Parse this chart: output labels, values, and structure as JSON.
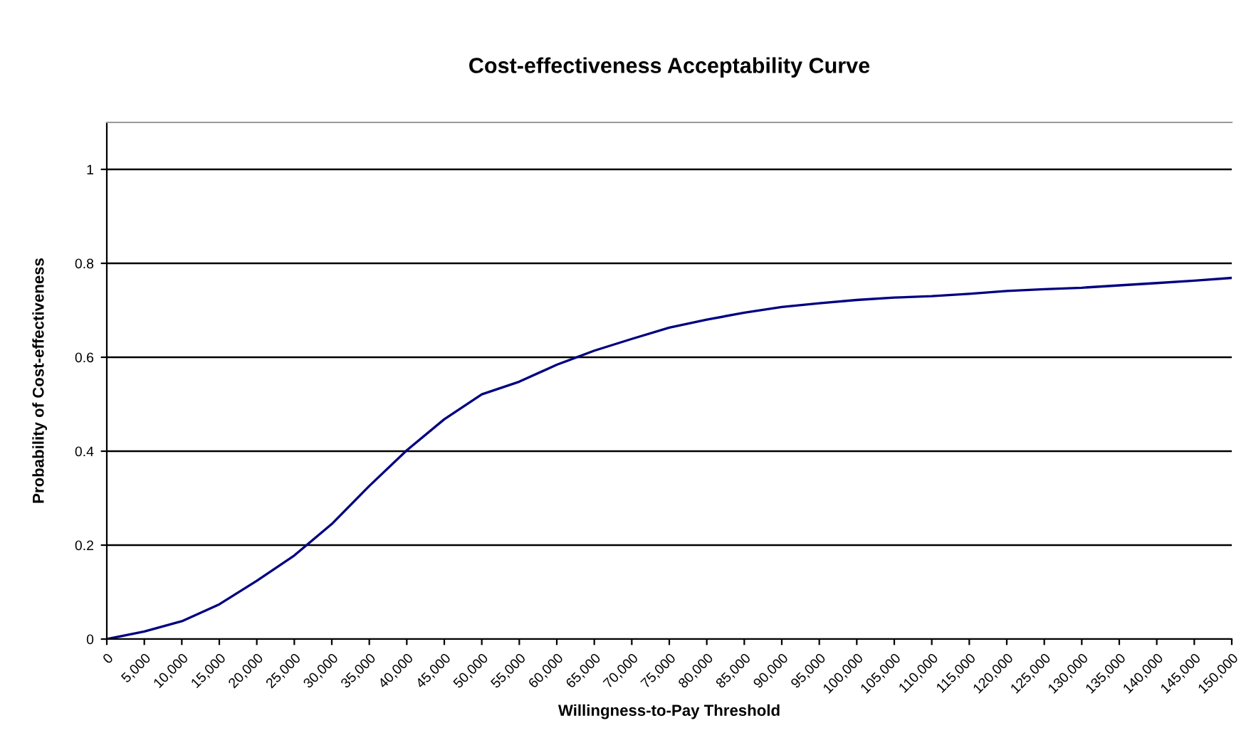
{
  "chart_data": {
    "type": "line",
    "title": "Cost-effectiveness Acceptability Curve",
    "xlabel": "Willingness-to-Pay Threshold",
    "ylabel": "Probability of Cost-effectiveness",
    "x": [
      0,
      5000,
      10000,
      15000,
      20000,
      25000,
      30000,
      35000,
      40000,
      45000,
      50000,
      55000,
      60000,
      65000,
      70000,
      75000,
      80000,
      85000,
      90000,
      95000,
      100000,
      105000,
      110000,
      115000,
      120000,
      125000,
      130000,
      135000,
      140000,
      145000,
      150000
    ],
    "series": [
      {
        "color": "#000080",
        "values": [
          0,
          0.016,
          0.038,
          0.074,
          0.124,
          0.178,
          0.245,
          0.326,
          0.402,
          0.468,
          0.521,
          0.548,
          0.584,
          0.614,
          0.639,
          0.663,
          0.68,
          0.695,
          0.707,
          0.715,
          0.722,
          0.727,
          0.73,
          0.735,
          0.741,
          0.745,
          0.748,
          0.753,
          0.758,
          0.763,
          0.769
        ]
      }
    ],
    "xlim": [
      0,
      150000
    ],
    "ylim": [
      0,
      1.1
    ],
    "xticks": [
      {
        "value": 0,
        "label": "0"
      },
      {
        "value": 5000,
        "label": "5,000"
      },
      {
        "value": 10000,
        "label": "10,000"
      },
      {
        "value": 15000,
        "label": "15,000"
      },
      {
        "value": 20000,
        "label": "20,000"
      },
      {
        "value": 25000,
        "label": "25,000"
      },
      {
        "value": 30000,
        "label": "30,000"
      },
      {
        "value": 35000,
        "label": "35,000"
      },
      {
        "value": 40000,
        "label": "40,000"
      },
      {
        "value": 45000,
        "label": "45,000"
      },
      {
        "value": 50000,
        "label": "50,000"
      },
      {
        "value": 55000,
        "label": "55,000"
      },
      {
        "value": 60000,
        "label": "60,000"
      },
      {
        "value": 65000,
        "label": "65,000"
      },
      {
        "value": 70000,
        "label": "70,000"
      },
      {
        "value": 75000,
        "label": "75,000"
      },
      {
        "value": 80000,
        "label": "80,000"
      },
      {
        "value": 85000,
        "label": "85,000"
      },
      {
        "value": 90000,
        "label": "90,000"
      },
      {
        "value": 95000,
        "label": "95,000"
      },
      {
        "value": 100000,
        "label": "100,000"
      },
      {
        "value": 105000,
        "label": "105,000"
      },
      {
        "value": 110000,
        "label": "110,000"
      },
      {
        "value": 115000,
        "label": "115,000"
      },
      {
        "value": 120000,
        "label": "120,000"
      },
      {
        "value": 125000,
        "label": "125,000"
      },
      {
        "value": 130000,
        "label": "130,000"
      },
      {
        "value": 135000,
        "label": "135,000"
      },
      {
        "value": 140000,
        "label": "140,000"
      },
      {
        "value": 145000,
        "label": "145,000"
      },
      {
        "value": 150000,
        "label": "150,000"
      }
    ],
    "yticks": [
      0,
      0.2,
      0.4,
      0.6,
      0.8,
      1
    ],
    "grid": "y",
    "marker": "none",
    "line_style": "solid"
  }
}
